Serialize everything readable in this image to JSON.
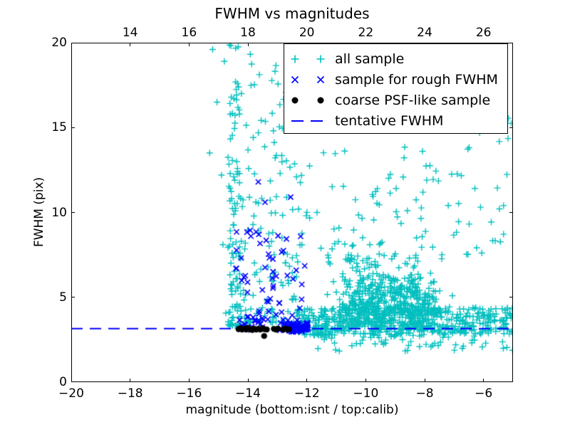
{
  "chart_data": {
    "type": "scatter",
    "title": "FWHM vs magnitudes",
    "xlabel": "magnitude (bottom:isnt / top:calib)",
    "ylabel": "FWHM (pix)",
    "xlim": [
      -20,
      -5
    ],
    "ylim": [
      0,
      20
    ],
    "grid": false,
    "xticks": [
      -20,
      -18,
      -16,
      -14,
      -12,
      -10,
      -8,
      -6
    ],
    "xtick_labels": [
      "−20",
      "−18",
      "−16",
      "−14",
      "−12",
      "−10",
      "−8",
      "−6"
    ],
    "yticks": [
      0,
      5,
      10,
      15,
      20
    ],
    "ytick_labels": [
      "0",
      "5",
      "10",
      "15",
      "20"
    ],
    "top_axis": {
      "xlim": [
        12,
        27
      ],
      "ticks": [
        14,
        16,
        18,
        20,
        22,
        24,
        26
      ],
      "tick_labels": [
        "14",
        "16",
        "18",
        "20",
        "22",
        "24",
        "26"
      ]
    },
    "colors": {
      "all_sample": "#00bfbf",
      "rough_sample": "#0000ff",
      "psf_sample": "#000000",
      "tentative_line": "#0000ff",
      "axes": "#000000",
      "background": "#ffffff"
    },
    "tentative_fwhm": 3.15,
    "seed": 42,
    "series": [
      {
        "name": "all sample",
        "marker": "plus",
        "color": "#00bfbf",
        "z": 1,
        "points": [
          [
            -15.2,
            19.6
          ],
          [
            -15.05,
            16.5
          ],
          [
            -14.9,
            12.2
          ],
          [
            -14.85,
            8.1
          ],
          [
            -15.3,
            13.5
          ],
          [
            -14.8,
            18.9
          ],
          [
            -14.75,
            4.07
          ]
        ],
        "clusters": [
          {
            "n": 110,
            "x": [
              -14.68,
              -14.22
            ],
            "y": [
              3.3,
              20.0
            ],
            "xp": 1.0,
            "yp": 1.7
          },
          {
            "n": 140,
            "x": [
              -14.2,
              -12.15
            ],
            "y": [
              3.5,
              19.5
            ],
            "xp": 1.0,
            "yp": 2.3
          },
          {
            "n": 400,
            "x": [
              -12.35,
              -8.0
            ],
            "y": [
              2.75,
              4.35
            ],
            "xp": 1.0,
            "yp": 1.0
          },
          {
            "n": 200,
            "x": [
              -8.0,
              -5.02
            ],
            "y": [
              2.8,
              4.4
            ],
            "xp": 1.0,
            "yp": 1.0
          },
          {
            "n": 150,
            "x": [
              -10.8,
              -8.2
            ],
            "y": [
              4.2,
              7.6
            ],
            "xp": 1.0,
            "yp": 1.5
          },
          {
            "n": 130,
            "x": [
              -10.3,
              -7.6
            ],
            "y": [
              3.9,
              6.2
            ],
            "xp": 1.0,
            "yp": 1.2
          },
          {
            "n": 70,
            "x": [
              -11.5,
              -7.0
            ],
            "y": [
              4.3,
              9.8
            ],
            "xp": 1.0,
            "yp": 1.8
          },
          {
            "n": 150,
            "x": [
              -10.6,
              -7.7
            ],
            "y": [
              3.1,
              5.6
            ],
            "xp": 1.0,
            "yp": 1.1
          },
          {
            "n": 115,
            "x": [
              -12.3,
              -5.05
            ],
            "y": [
              7.5,
              20.0
            ],
            "xp": 1.1,
            "yp": 1.35
          },
          {
            "n": 55,
            "x": [
              -11.9,
              -5.0
            ],
            "y": [
              1.75,
              2.85
            ],
            "xp": 1.0,
            "yp": 0.85
          }
        ]
      },
      {
        "name": "sample for rough FWHM",
        "marker": "x",
        "color": "#0000ff",
        "z": 3,
        "points": [
          [
            -13.65,
            11.8
          ],
          [
            -13.42,
            10.6
          ],
          [
            -12.55,
            10.9
          ],
          [
            -13.9,
            8.6
          ]
        ],
        "clusters": [
          {
            "n": 62,
            "x": [
              -14.45,
              -12.05
            ],
            "y": [
              3.6,
              9.2
            ],
            "xp": 1.0,
            "yp": 1.8
          },
          {
            "n": 80,
            "x": [
              -12.78,
              -11.92
            ],
            "y": [
              2.95,
              3.5
            ],
            "xp": 1.0,
            "yp": 1.0
          },
          {
            "n": 12,
            "x": [
              -14.35,
              -12.78
            ],
            "y": [
              3.05,
              3.55
            ],
            "xp": 1.0,
            "yp": 1.0
          }
        ]
      },
      {
        "name": "coarse PSF-like sample",
        "marker": "dot",
        "color": "#000000",
        "z": 4,
        "points": [
          [
            -14.32,
            3.12
          ],
          [
            -14.26,
            3.18
          ],
          [
            -14.2,
            3.1
          ],
          [
            -14.13,
            3.15
          ],
          [
            -14.06,
            3.1
          ],
          [
            -14.0,
            3.2
          ],
          [
            -13.93,
            3.12
          ],
          [
            -13.86,
            3.08
          ],
          [
            -13.8,
            3.16
          ],
          [
            -13.72,
            3.1
          ],
          [
            -13.65,
            3.14
          ],
          [
            -13.58,
            3.1
          ],
          [
            -13.5,
            3.18
          ],
          [
            -13.44,
            3.12
          ],
          [
            -13.36,
            3.1
          ],
          [
            -13.45,
            2.72
          ],
          [
            -13.12,
            3.14
          ],
          [
            -13.05,
            3.1
          ],
          [
            -12.98,
            3.16
          ],
          [
            -12.8,
            3.1
          ],
          [
            -12.73,
            3.15
          ],
          [
            -12.66,
            3.1
          ],
          [
            -12.6,
            3.12
          ]
        ]
      },
      {
        "name": "tentative FWHM",
        "type": "hline",
        "style": "dashed",
        "y": 3.15,
        "dash": [
          16,
          10
        ],
        "line_width": 2,
        "color": "#0000ff",
        "z": 2
      }
    ],
    "legend": {
      "position": "top-right",
      "items": [
        {
          "label": "all sample",
          "marker": "cyan-plus"
        },
        {
          "label": "sample for rough FWHM",
          "marker": "blue-x"
        },
        {
          "label": "coarse PSF-like sample",
          "marker": "black-dot"
        },
        {
          "label": "tentative FWHM",
          "marker": "blue-dash"
        }
      ]
    }
  }
}
